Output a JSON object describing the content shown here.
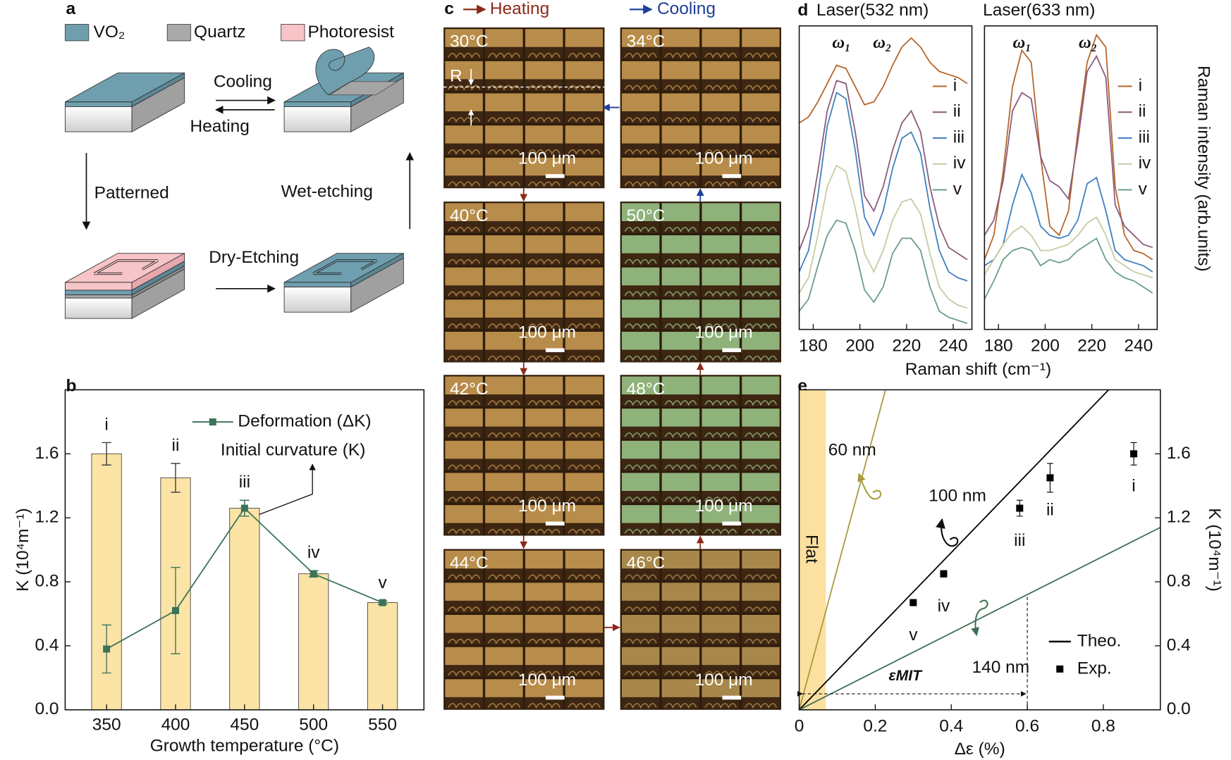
{
  "panel_labels": [
    "a",
    "b",
    "c",
    "d",
    "e"
  ],
  "a": {
    "legend": [
      "VO₂",
      "Quartz",
      "Photoresist"
    ],
    "steps": {
      "cooling": "Cooling",
      "heating": "Heating",
      "patterned": "Patterned",
      "wet_etching": "Wet-etching",
      "dry_etching": "Dry-Etching"
    }
  },
  "c": {
    "heating": "Heating",
    "cooling": "Cooling",
    "radius_marker": "R",
    "tiles": [
      {
        "temperature": "30°C",
        "scale_bar": "100 μm",
        "color": "#b88c4a"
      },
      {
        "temperature": "34°C",
        "scale_bar": "100 μm",
        "color": "#b88c4a"
      },
      {
        "temperature": "40°C",
        "scale_bar": "100 μm",
        "color": "#b88c4a"
      },
      {
        "temperature": "50°C",
        "scale_bar": "100 μm",
        "color": "#8fb27a"
      },
      {
        "temperature": "42°C",
        "scale_bar": "100 μm",
        "color": "#b88c4a"
      },
      {
        "temperature": "48°C",
        "scale_bar": "100 μm",
        "color": "#8fb27a"
      },
      {
        "temperature": "44°C",
        "scale_bar": "100 μm",
        "color": "#b88c4a"
      },
      {
        "temperature": "46°C",
        "scale_bar": "100 μm",
        "color": "#a8884a"
      }
    ]
  },
  "chart_data": [
    {
      "type": "bar",
      "xlabel": "Growth temperature (°C)",
      "ylabel": "K (10⁴m⁻¹)",
      "x": [
        350,
        400,
        450,
        500,
        550
      ],
      "category_labels": [
        "i",
        "ii",
        "iii",
        "iv",
        "v"
      ],
      "xlim": [
        320,
        580
      ],
      "xticks": [
        350,
        400,
        450,
        500,
        550
      ],
      "ylim": [
        0,
        2.0
      ],
      "yticks": [
        {
          "value": 0,
          "label": "0.0"
        },
        0.4,
        0.8,
        1.2,
        1.6
      ],
      "series": [
        {
          "name": "Initial curvature (K)",
          "type": "bar",
          "color": "#fbe4a6",
          "values": [
            1.6,
            1.45,
            1.26,
            0.85,
            0.67
          ],
          "errors": [
            0.07,
            0.09,
            0.05,
            0.02,
            0.01
          ]
        },
        {
          "name": "Deformation (ΔK)",
          "type": "line",
          "color": "#3b7358",
          "values": [
            0.38,
            0.62,
            1.26,
            0.85,
            0.67
          ],
          "errors": [
            0.15,
            0.27,
            0.05,
            0.02,
            0.01
          ]
        }
      ]
    },
    {
      "type": "line",
      "title": "Laser(532 nm)",
      "xlabel": "Raman shift (cm⁻¹)",
      "peak_labels": [
        "ω₁",
        "ω₂"
      ],
      "x": [
        174,
        178,
        182,
        186,
        190,
        194,
        198,
        202,
        206,
        210,
        214,
        218,
        222,
        226,
        230,
        234,
        238,
        242,
        246
      ],
      "xlim": [
        174,
        248
      ],
      "xticks": [
        180,
        200,
        220,
        240
      ],
      "ylim": [
        0,
        1
      ],
      "series": [
        {
          "name": "i",
          "color": "#b5652a",
          "values": [
            0.68,
            0.7,
            0.75,
            0.81,
            0.87,
            0.86,
            0.8,
            0.74,
            0.75,
            0.8,
            0.87,
            0.93,
            0.96,
            0.93,
            0.88,
            0.85,
            0.84,
            0.83,
            0.81
          ]
        },
        {
          "name": "ii",
          "color": "#8a5a7a",
          "values": [
            0.26,
            0.34,
            0.52,
            0.72,
            0.82,
            0.81,
            0.65,
            0.44,
            0.39,
            0.47,
            0.59,
            0.68,
            0.72,
            0.65,
            0.47,
            0.34,
            0.27,
            0.25,
            0.23
          ]
        },
        {
          "name": "iii",
          "color": "#3f7fbf",
          "values": [
            0.19,
            0.26,
            0.44,
            0.67,
            0.78,
            0.76,
            0.59,
            0.37,
            0.31,
            0.39,
            0.53,
            0.63,
            0.65,
            0.58,
            0.4,
            0.26,
            0.19,
            0.17,
            0.16
          ]
        },
        {
          "name": "iv",
          "color": "#c4cca2",
          "values": [
            0.12,
            0.17,
            0.31,
            0.47,
            0.54,
            0.52,
            0.4,
            0.25,
            0.19,
            0.26,
            0.36,
            0.42,
            0.43,
            0.38,
            0.25,
            0.14,
            0.1,
            0.08,
            0.07
          ]
        },
        {
          "name": "v",
          "color": "#6a9c88",
          "values": [
            0.06,
            0.1,
            0.21,
            0.31,
            0.36,
            0.35,
            0.26,
            0.13,
            0.09,
            0.14,
            0.25,
            0.3,
            0.3,
            0.26,
            0.14,
            0.06,
            0.04,
            0.03,
            0.02
          ]
        }
      ]
    },
    {
      "type": "line",
      "title": "Laser(633 nm)",
      "ylabel": "Raman intensity (arb.units)",
      "peak_labels": [
        "ω₁",
        "ω₂"
      ],
      "x": [
        174,
        178,
        182,
        186,
        190,
        194,
        198,
        202,
        206,
        210,
        214,
        218,
        222,
        226,
        230,
        234,
        238,
        242,
        246
      ],
      "xlim": [
        174,
        248
      ],
      "xticks": [
        180,
        200,
        220,
        240
      ],
      "ylim": [
        0,
        1
      ],
      "series": [
        {
          "name": "i",
          "color": "#b5652a",
          "values": [
            0.23,
            0.31,
            0.52,
            0.8,
            0.92,
            0.88,
            0.57,
            0.34,
            0.31,
            0.39,
            0.65,
            0.88,
            0.97,
            0.93,
            0.47,
            0.31,
            0.26,
            0.25,
            0.23
          ]
        },
        {
          "name": "ii",
          "color": "#8a5a7a",
          "values": [
            0.31,
            0.36,
            0.49,
            0.72,
            0.78,
            0.76,
            0.57,
            0.49,
            0.47,
            0.43,
            0.62,
            0.85,
            0.9,
            0.83,
            0.41,
            0.34,
            0.31,
            0.28,
            0.27
          ]
        },
        {
          "name": "iii",
          "color": "#3f7fbf",
          "values": [
            0.21,
            0.23,
            0.28,
            0.41,
            0.51,
            0.45,
            0.34,
            0.31,
            0.3,
            0.31,
            0.36,
            0.48,
            0.5,
            0.39,
            0.26,
            0.23,
            0.22,
            0.21,
            0.19
          ]
        },
        {
          "name": "iv",
          "color": "#c4cca2",
          "values": [
            0.18,
            0.23,
            0.28,
            0.32,
            0.34,
            0.31,
            0.26,
            0.26,
            0.27,
            0.28,
            0.31,
            0.35,
            0.37,
            0.31,
            0.23,
            0.21,
            0.19,
            0.18,
            0.17
          ]
        },
        {
          "name": "v",
          "color": "#6a9c88",
          "values": [
            0.1,
            0.16,
            0.23,
            0.26,
            0.27,
            0.26,
            0.21,
            0.23,
            0.22,
            0.23,
            0.26,
            0.28,
            0.3,
            0.23,
            0.19,
            0.17,
            0.16,
            0.14,
            0.12
          ]
        }
      ]
    },
    {
      "type": "scatter",
      "xlabel": "Δε (%)",
      "ylabel": "K (10⁴m⁻¹)",
      "y_axis_side": "right",
      "xlim": [
        0,
        0.95
      ],
      "xticks": [
        0,
        0.2,
        0.4,
        0.6,
        0.8
      ],
      "ylim": [
        0,
        2.0
      ],
      "yticks": [
        {
          "value": 0,
          "label": "0.0"
        },
        0.4,
        0.8,
        1.2,
        1.6
      ],
      "flat_region": {
        "label": "Flat",
        "xlim": [
          0,
          0.07
        ],
        "color": "#fbe0a0"
      },
      "mit": {
        "label": "εMIT",
        "x": 0.6,
        "y_top": 0.72,
        "y_arrow": 0.1
      },
      "theory_legend": "Theo.",
      "series": [
        {
          "name": "60 nm",
          "kind": "theory",
          "color": "#a89a3c",
          "x": [
            0,
            0.227
          ],
          "y": [
            0,
            2.0
          ]
        },
        {
          "name": "100 nm",
          "kind": "theory",
          "color": "#000000",
          "x": [
            0,
            0.814
          ],
          "y": [
            0,
            2.0
          ]
        },
        {
          "name": "140 nm",
          "kind": "theory",
          "color": "#3e6e52",
          "x": [
            0,
            0.95
          ],
          "y": [
            0,
            1.14
          ]
        },
        {
          "name": "Exp.",
          "kind": "experiment",
          "color": "#000000",
          "x": [
            0.3,
            0.38,
            0.58,
            0.66,
            0.88
          ],
          "y": [
            0.67,
            0.85,
            1.26,
            1.45,
            1.6
          ],
          "errors": [
            0.01,
            0.02,
            0.05,
            0.09,
            0.07
          ],
          "point_labels": [
            "v",
            "iv",
            "iii",
            "ii",
            "i"
          ]
        }
      ]
    }
  ]
}
